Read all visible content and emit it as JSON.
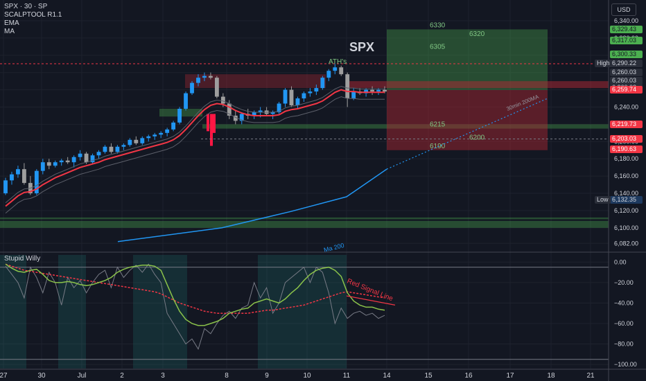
{
  "legend": {
    "symbol": "SPX · 30 · SP",
    "l1": "SCALPTOOL R1.1",
    "l2": "EMA",
    "l3": "MA"
  },
  "currency": "USD",
  "osc_title": "Stupid Willy",
  "colors": {
    "bg": "#131722",
    "up": "#2196f3",
    "down": "#9e9e9e",
    "red": "#ff1744",
    "ema": "#f23645",
    "ma200": "#2196f3",
    "green_zone": "#4caf50",
    "red_zone": "#b22833"
  },
  "chart_data": {
    "type": "candlestick",
    "title": "SPX",
    "price_ylim": [
      6075,
      6348
    ],
    "price_ticks": [
      6082,
      6100,
      6120,
      6140,
      6160,
      6180,
      6200,
      6220,
      6240,
      6260,
      6280,
      6300,
      6320,
      6340
    ],
    "osc_ylim": [
      -104,
      7
    ],
    "osc_ticks": [
      0,
      -20,
      -40,
      -60,
      -80,
      -100
    ],
    "x_labels": [
      "27",
      "30",
      "Jul",
      "2",
      "3",
      "8",
      "9",
      "10",
      "11",
      "14",
      "15",
      "16",
      "17",
      "18",
      "21"
    ],
    "price_badges": [
      {
        "value": "6,329.43",
        "kind": "green"
      },
      {
        "value": "6,317.03",
        "kind": "green"
      },
      {
        "value": "6,300.33",
        "kind": "green"
      },
      {
        "value": "6,290.22",
        "kind": "dark"
      },
      {
        "value": "6,260.03",
        "kind": "dark"
      },
      {
        "value": "6,260.03",
        "kind": "dark"
      },
      {
        "value": "6,260.03",
        "kind": "dark"
      },
      {
        "value": "6,259.74",
        "kind": "red"
      },
      {
        "value": "6,219.73",
        "kind": "red"
      },
      {
        "value": "6,203.03",
        "kind": "red"
      },
      {
        "value": "6,190.63",
        "kind": "red"
      },
      {
        "value": "6,132.35",
        "kind": "blue"
      }
    ],
    "line_labels": [
      {
        "text": "High",
        "value": 6290.22
      },
      {
        "text": "Low",
        "value": 6132.35
      }
    ],
    "targets": [
      {
        "text": "6330",
        "value": 6330
      },
      {
        "text": "6320",
        "value": 6320
      },
      {
        "text": "6305",
        "value": 6305
      },
      {
        "text": "6215",
        "value": 6215
      },
      {
        "text": "6200",
        "value": 6200
      },
      {
        "text": "6190",
        "value": 6190
      }
    ],
    "annotations": [
      {
        "text": "ATH's"
      },
      {
        "text": "30min 200MA"
      },
      {
        "text": "Ma 200"
      },
      {
        "text": "Red Signal Line"
      }
    ],
    "candles": [
      [
        6140,
        6158,
        6138,
        6155
      ],
      [
        6155,
        6165,
        6150,
        6162
      ],
      [
        6162,
        6172,
        6158,
        6168
      ],
      [
        6168,
        6175,
        6150,
        6152
      ],
      [
        6152,
        6160,
        6138,
        6140
      ],
      [
        6140,
        6168,
        6138,
        6166
      ],
      [
        6166,
        6180,
        6162,
        6176
      ],
      [
        6176,
        6180,
        6168,
        6172
      ],
      [
        6172,
        6178,
        6170,
        6176
      ],
      [
        6176,
        6180,
        6172,
        6178
      ],
      [
        6178,
        6182,
        6174,
        6176
      ],
      [
        6176,
        6184,
        6170,
        6182
      ],
      [
        6182,
        6190,
        6178,
        6186
      ],
      [
        6186,
        6188,
        6174,
        6176
      ],
      [
        6176,
        6186,
        6174,
        6184
      ],
      [
        6184,
        6190,
        6180,
        6188
      ],
      [
        6188,
        6196,
        6186,
        6194
      ],
      [
        6194,
        6198,
        6186,
        6188
      ],
      [
        6188,
        6196,
        6186,
        6194
      ],
      [
        6194,
        6198,
        6190,
        6196
      ],
      [
        6196,
        6204,
        6194,
        6202
      ],
      [
        6202,
        6206,
        6196,
        6198
      ],
      [
        6198,
        6206,
        6196,
        6204
      ],
      [
        6204,
        6208,
        6200,
        6206
      ],
      [
        6206,
        6210,
        6202,
        6208
      ],
      [
        6208,
        6212,
        6204,
        6210
      ],
      [
        6210,
        6216,
        6206,
        6214
      ],
      [
        6214,
        6224,
        6212,
        6222
      ],
      [
        6222,
        6240,
        6220,
        6238
      ],
      [
        6238,
        6258,
        6236,
        6256
      ],
      [
        6256,
        6270,
        6254,
        6268
      ],
      [
        6268,
        6278,
        6264,
        6274
      ],
      [
        6274,
        6280,
        6270,
        6276
      ],
      [
        6276,
        6280,
        6272,
        6274
      ],
      [
        6274,
        6276,
        6250,
        6252
      ],
      [
        6252,
        6256,
        6240,
        6244
      ],
      [
        6244,
        6248,
        6226,
        6230
      ],
      [
        6230,
        6236,
        6220,
        6224
      ],
      [
        6224,
        6234,
        6220,
        6232
      ],
      [
        6232,
        6238,
        6226,
        6230
      ],
      [
        6230,
        6236,
        6226,
        6234
      ],
      [
        6234,
        6240,
        6228,
        6236
      ],
      [
        6236,
        6240,
        6230,
        6232
      ],
      [
        6232,
        6236,
        6226,
        6234
      ],
      [
        6234,
        6246,
        6232,
        6244
      ],
      [
        6244,
        6262,
        6240,
        6260
      ],
      [
        6260,
        6264,
        6240,
        6242
      ],
      [
        6242,
        6252,
        6238,
        6250
      ],
      [
        6250,
        6258,
        6246,
        6256
      ],
      [
        6256,
        6262,
        6252,
        6258
      ],
      [
        6258,
        6266,
        6254,
        6262
      ],
      [
        6262,
        6276,
        6260,
        6274
      ],
      [
        6274,
        6284,
        6270,
        6282
      ],
      [
        6282,
        6290,
        6278,
        6286
      ],
      [
        6286,
        6288,
        6276,
        6278
      ],
      [
        6278,
        6280,
        6240,
        6250
      ],
      [
        6250,
        6262,
        6248,
        6258
      ],
      [
        6258,
        6262,
        6254,
        6256
      ],
      [
        6256,
        6262,
        6252,
        6260
      ],
      [
        6260,
        6264,
        6254,
        6258
      ],
      [
        6258,
        6262,
        6254,
        6260
      ],
      [
        6260,
        6264,
        6256,
        6258
      ]
    ],
    "ema": [
      6125,
      6131,
      6137,
      6141,
      6142,
      6145,
      6150,
      6154,
      6158,
      6161,
      6164,
      6167,
      6170,
      6172,
      6174,
      6176,
      6179,
      6181,
      6183,
      6185,
      6187,
      6189,
      6191,
      6193,
      6195,
      6197,
      6199,
      6202,
      6207,
      6214,
      6222,
      6230,
      6237,
      6242,
      6244,
      6243,
      6240,
      6236,
      6233,
      6231,
      6230,
      6230,
      6230,
      6230,
      6231,
      6235,
      6237,
      6238,
      6240,
      6242,
      6244,
      6247,
      6252,
      6257,
      6260,
      6258,
      6258,
      6257,
      6257,
      6257,
      6257,
      6257
    ],
    "ma200": [
      [
        6082,
        6084
      ],
      [
        6110,
        6100
      ],
      [
        6130,
        6119
      ],
      [
        6150,
        6136
      ],
      [
        6180,
        6168
      ]
    ],
    "wave": [
      -2,
      -6,
      -9,
      -10,
      -8,
      -7,
      -12,
      -18,
      -20,
      -20,
      -19,
      -20,
      -22,
      -23,
      -22,
      -20,
      -18,
      -15,
      -10,
      -7,
      -5,
      -4,
      -3,
      -3,
      -4,
      -8,
      -22,
      -36,
      -48,
      -56,
      -60,
      -62,
      -62,
      -60,
      -58,
      -55,
      -50,
      -48,
      -46,
      -45,
      -40,
      -38,
      -36,
      -38,
      -40,
      -36,
      -30,
      -25,
      -18,
      -12,
      -8,
      -6,
      -5,
      -8,
      -14,
      -30,
      -38,
      -42,
      -44,
      -44,
      -46,
      -47
    ],
    "signal": [
      -2,
      -4,
      -6,
      -8,
      -9,
      -10,
      -11,
      -12,
      -13,
      -14,
      -15,
      -16,
      -17,
      -18,
      -19,
      -20,
      -21,
      -22,
      -23,
      -24,
      -25,
      -26,
      -27,
      -28,
      -29,
      -31,
      -34,
      -37,
      -40,
      -42,
      -44,
      -46,
      -48,
      -49,
      -50,
      -50,
      -50,
      -50,
      -50,
      -50,
      -49,
      -48,
      -47,
      -47,
      -46,
      -45,
      -44,
      -43,
      -42,
      -40,
      -38,
      -36,
      -34,
      -32,
      -30,
      -29,
      -30,
      -31,
      -32,
      -33,
      -34,
      -35
    ],
    "raw": [
      -4,
      -12,
      -20,
      -35,
      -5,
      -15,
      -30,
      -10,
      -20,
      -42,
      -15,
      -25,
      -18,
      -30,
      -20,
      -12,
      -8,
      -25,
      -5,
      -15,
      -8,
      -3,
      -10,
      -2,
      -12,
      -20,
      -50,
      -60,
      -70,
      -80,
      -75,
      -85,
      -65,
      -70,
      -60,
      -52,
      -48,
      -55,
      -45,
      -42,
      -20,
      -35,
      -25,
      -50,
      -40,
      -20,
      -15,
      -10,
      -5,
      -20,
      -5,
      -10,
      -30,
      -60,
      -45,
      -55,
      -50,
      -48,
      -52,
      -50,
      -55,
      -52
    ],
    "zones": [
      {
        "from": 6229,
        "to": 6238,
        "x": [
          230,
          292
        ],
        "kind": "green"
      },
      {
        "from": 6262,
        "to": 6278,
        "x": [
          267,
          470
        ],
        "kind": "red"
      },
      {
        "from": 6215,
        "to": 6220,
        "x": [
          292,
          878
        ],
        "kind": "green"
      },
      {
        "from": 6110,
        "to": 6112,
        "x": [
          0,
          878
        ],
        "kind": "green"
      },
      {
        "from": 6100,
        "to": 6108,
        "x": [
          0,
          878
        ],
        "kind": "green"
      }
    ],
    "osc_shades": [
      [
        0,
        38
      ],
      [
        84,
        124
      ],
      [
        192,
        270
      ],
      [
        372,
        500
      ]
    ]
  }
}
